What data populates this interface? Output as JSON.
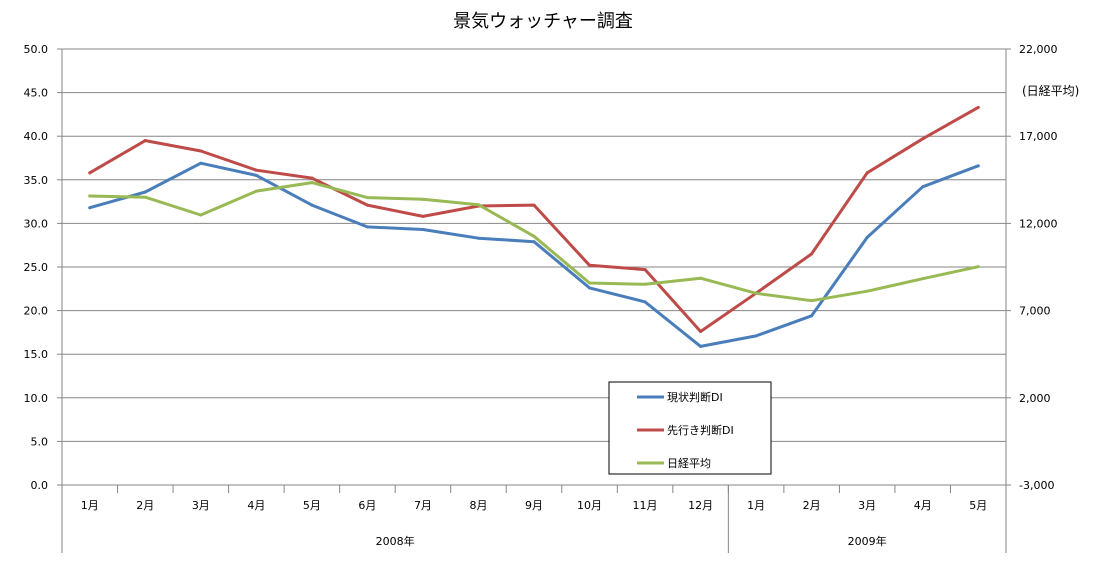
{
  "chart_data": {
    "type": "line",
    "title": "景気ウォッチャー調査",
    "categories": [
      "1月",
      "2月",
      "3月",
      "4月",
      "5月",
      "6月",
      "7月",
      "8月",
      "9月",
      "10月",
      "11月",
      "12月",
      "1月",
      "2月",
      "3月",
      "4月",
      "5月"
    ],
    "year_groups": [
      {
        "label": "2008年",
        "count": 12
      },
      {
        "label": "2009年",
        "count": 5
      }
    ],
    "y_left": {
      "min": 0,
      "max": 50,
      "step": 5,
      "ticks": [
        "0.0",
        "5.0",
        "10.0",
        "15.0",
        "20.0",
        "25.0",
        "30.0",
        "35.0",
        "40.0",
        "45.0",
        "50.0"
      ]
    },
    "y_right": {
      "min": -3000,
      "max": 22000,
      "step": 5000,
      "ticks": [
        "-3,000",
        "2,000",
        "7,000",
        "12,000",
        "17,000",
        "22,000"
      ],
      "unit_label": "(日経平均)"
    },
    "grid": true,
    "legend_position": "bottom-center",
    "series": [
      {
        "name": "現状判断DI",
        "axis": "left",
        "color": "#4a7ebb",
        "values": [
          31.8,
          33.6,
          36.9,
          35.5,
          32.1,
          29.6,
          29.3,
          28.3,
          27.9,
          22.6,
          21.0,
          15.9,
          17.1,
          19.4,
          28.4,
          34.2,
          36.6
        ]
      },
      {
        "name": "先行き判断DI",
        "axis": "left",
        "color": "#be4b48",
        "values": [
          35.8,
          39.5,
          38.3,
          36.1,
          35.2,
          32.1,
          30.8,
          32.0,
          32.1,
          25.2,
          24.7,
          17.6,
          22.0,
          26.5,
          35.8,
          39.7,
          43.3
        ]
      },
      {
        "name": "日経平均",
        "axis": "right",
        "color": "#98b954",
        "values": [
          13570,
          13500,
          12480,
          13850,
          14340,
          13480,
          13380,
          13070,
          11260,
          8580,
          8510,
          8860,
          7990,
          7570,
          8110,
          8830,
          9520
        ]
      }
    ]
  }
}
